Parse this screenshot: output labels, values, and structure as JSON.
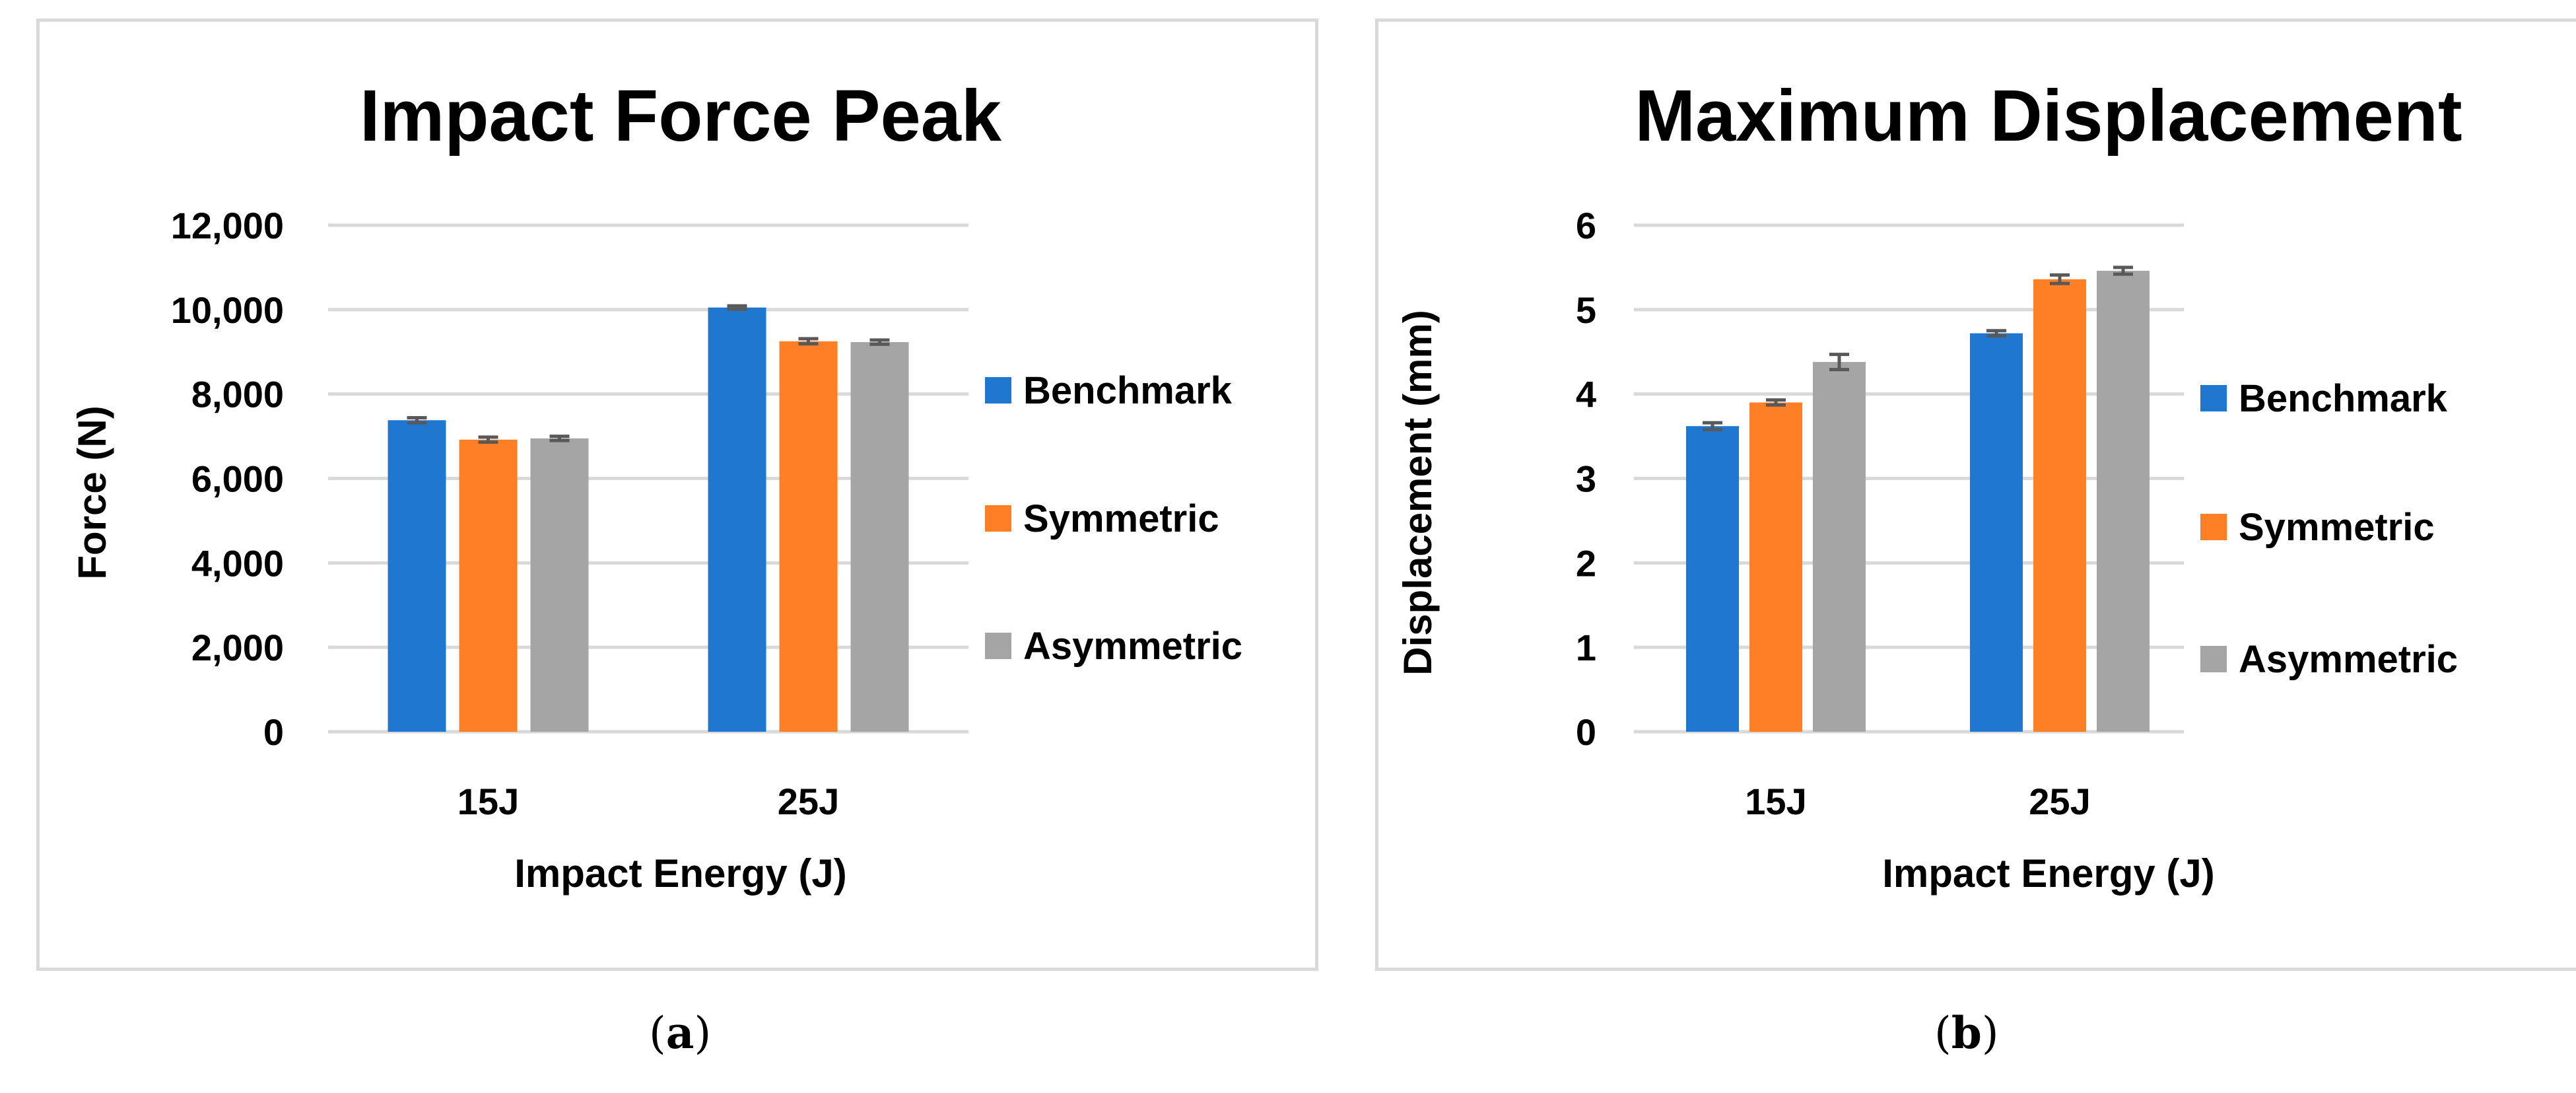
{
  "chart_data": [
    {
      "type": "bar",
      "panel_label": "a",
      "title": "Impact Force Peak",
      "xlabel": "Impact Energy (J)",
      "ylabel": "Force (N)",
      "categories": [
        "15J",
        "25J"
      ],
      "ylim": [
        0,
        12000
      ],
      "yticks": [
        0,
        2000,
        4000,
        6000,
        8000,
        10000,
        12000
      ],
      "ytick_labels": [
        "0",
        "2,000",
        "4,000",
        "6,000",
        "8,000",
        "10,000",
        "12,000"
      ],
      "grid": true,
      "legend_position": "right",
      "series": [
        {
          "name": "Benchmark",
          "color": "#1f77d0",
          "values": [
            7380,
            10050
          ],
          "errors": [
            60,
            40
          ]
        },
        {
          "name": "Symmetric",
          "color": "#ff7f27",
          "values": [
            6920,
            9250
          ],
          "errors": [
            60,
            60
          ]
        },
        {
          "name": "Asymmetric",
          "color": "#a5a5a5",
          "values": [
            6950,
            9230
          ],
          "errors": [
            50,
            50
          ]
        }
      ]
    },
    {
      "type": "bar",
      "panel_label": "b",
      "title": "Maximum Displacement",
      "xlabel": "Impact Energy (J)",
      "ylabel": "Displacement (mm)",
      "categories": [
        "15J",
        "25J"
      ],
      "ylim": [
        0,
        6
      ],
      "yticks": [
        0,
        1,
        2,
        3,
        4,
        5,
        6
      ],
      "ytick_labels": [
        "0",
        "1",
        "2",
        "3",
        "4",
        "5",
        "6"
      ],
      "grid": true,
      "legend_position": "right",
      "series": [
        {
          "name": "Benchmark",
          "color": "#1f77d0",
          "values": [
            3.62,
            4.72
          ],
          "errors": [
            0.04,
            0.03
          ]
        },
        {
          "name": "Symmetric",
          "color": "#ff7f27",
          "values": [
            3.9,
            5.36
          ],
          "errors": [
            0.03,
            0.05
          ]
        },
        {
          "name": "Asymmetric",
          "color": "#a5a5a5",
          "values": [
            4.38,
            5.46
          ],
          "errors": [
            0.09,
            0.04
          ]
        }
      ]
    }
  ],
  "captions": {
    "a": "a",
    "b": "b"
  }
}
